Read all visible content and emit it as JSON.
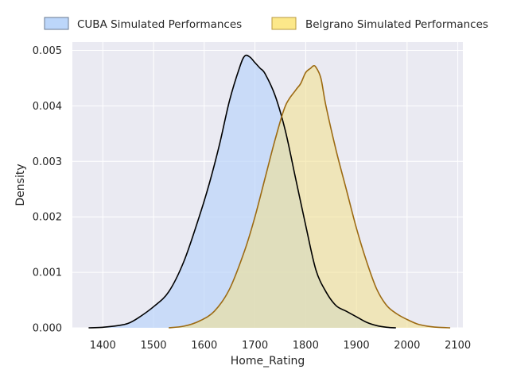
{
  "chart_data": {
    "type": "area",
    "title": "",
    "xlabel": "Home_Rating",
    "ylabel": "Density",
    "xlim": [
      1340,
      2110
    ],
    "ylim": [
      0,
      0.00515
    ],
    "xticks": [
      1400,
      1500,
      1600,
      1700,
      1800,
      1900,
      2000,
      2100
    ],
    "yticks": [
      0.0,
      0.001,
      0.002,
      0.003,
      0.004,
      0.005
    ],
    "xtick_labels": [
      "1400",
      "1500",
      "1600",
      "1700",
      "1800",
      "1900",
      "2000",
      "2100"
    ],
    "ytick_labels": [
      "0.000",
      "0.001",
      "0.002",
      "0.003",
      "0.004",
      "0.005"
    ],
    "grid": true,
    "legend_position": "top",
    "series": [
      {
        "name": "CUBA Simulated Performances",
        "fill": "#bcd6fa",
        "stroke": "#000000",
        "x": [
          1372,
          1400,
          1430,
          1450,
          1470,
          1500,
          1530,
          1560,
          1590,
          1610,
          1630,
          1650,
          1670,
          1680,
          1690,
          1700,
          1710,
          1720,
          1740,
          1760,
          1780,
          1800,
          1820,
          1840,
          1860,
          1880,
          1900,
          1920,
          1940,
          1960,
          1978
        ],
        "y": [
          0.0,
          1e-05,
          4e-05,
          8e-05,
          0.00018,
          0.00038,
          0.00065,
          0.0012,
          0.002,
          0.0026,
          0.0033,
          0.0041,
          0.0047,
          0.0049,
          0.00488,
          0.00478,
          0.00468,
          0.00458,
          0.00418,
          0.00355,
          0.0027,
          0.00185,
          0.00105,
          0.00065,
          0.0004,
          0.0003,
          0.0002,
          0.0001,
          4e-05,
          1e-05,
          0.0
        ]
      },
      {
        "name": "Belgrano Simulated Performances",
        "fill": "#f3e08a",
        "stroke": "#9c6a12",
        "x": [
          1530,
          1560,
          1590,
          1620,
          1650,
          1680,
          1700,
          1720,
          1740,
          1760,
          1780,
          1790,
          1800,
          1810,
          1815,
          1820,
          1830,
          1840,
          1860,
          1880,
          1900,
          1920,
          1940,
          1960,
          1980,
          2000,
          2020,
          2040,
          2060,
          2085
        ],
        "y": [
          0.0,
          3e-05,
          0.00012,
          0.0003,
          0.0007,
          0.0014,
          0.002,
          0.0027,
          0.0034,
          0.004,
          0.00428,
          0.0044,
          0.0046,
          0.00468,
          0.00472,
          0.0047,
          0.0045,
          0.004,
          0.0032,
          0.0025,
          0.0018,
          0.0012,
          0.0007,
          0.0004,
          0.00025,
          0.00015,
          7e-05,
          3e-05,
          1e-05,
          0.0
        ]
      }
    ]
  }
}
